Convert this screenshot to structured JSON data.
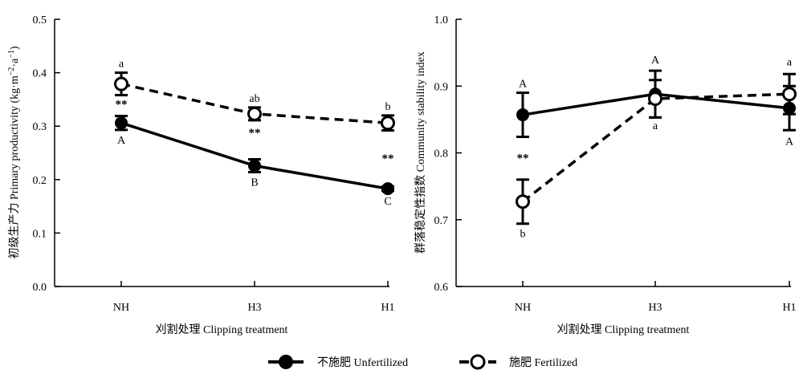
{
  "chart_data": [
    {
      "type": "line",
      "categories": [
        "NH",
        "H3",
        "H1"
      ],
      "xlabel": "刈割处理  Clipping treatment",
      "ylabel": "初级生产力  Primary productivity (kg·m",
      "ylabel_sup": "−2",
      "ylabel_mid": "·a",
      "ylabel_sup2": "−1",
      "ylabel_end": ")",
      "ylim": [
        0,
        0.5
      ],
      "yticks": [
        0.0,
        0.1,
        0.2,
        0.3,
        0.4,
        0.5
      ],
      "ytick_labels": [
        "0.0",
        "0.1",
        "0.2",
        "0.3",
        "0.4",
        "0.5"
      ],
      "series": [
        {
          "name": "不施肥  Unfertilized",
          "style": "solid",
          "marker": "filled",
          "values": [
            0.306,
            0.226,
            0.183
          ],
          "errors": [
            0.013,
            0.012,
            0.004
          ],
          "labels": [
            "A",
            "B",
            "C"
          ]
        },
        {
          "name": "施肥  Fertilized",
          "style": "dashed",
          "marker": "open",
          "values": [
            0.379,
            0.323,
            0.306
          ],
          "errors": [
            0.021,
            0.012,
            0.014
          ],
          "labels": [
            "a",
            "ab",
            "b"
          ]
        }
      ],
      "significance": [
        "**",
        "**",
        "**"
      ]
    },
    {
      "type": "line",
      "categories": [
        "NH",
        "H3",
        "H1"
      ],
      "xlabel": "刈割处理  Clipping treatment",
      "ylabel": "群落稳定性指数  Community stability index",
      "ylim": [
        0.6,
        1.0
      ],
      "yticks": [
        0.6,
        0.7,
        0.8,
        0.9,
        1.0
      ],
      "ytick_labels": [
        "0.6",
        "0.7",
        "0.8",
        "0.9",
        "1.0"
      ],
      "series": [
        {
          "name": "不施肥  Unfertilized",
          "style": "solid",
          "marker": "filled",
          "values": [
            0.857,
            0.888,
            0.867
          ],
          "errors": [
            0.033,
            0.035,
            0.033
          ],
          "labels": [
            "A",
            "A",
            "A"
          ]
        },
        {
          "name": "施肥  Fertilized",
          "style": "dashed",
          "marker": "open",
          "values": [
            0.727,
            0.881,
            0.888
          ],
          "errors": [
            0.033,
            0.028,
            0.03
          ],
          "labels": [
            "b",
            "a",
            "a"
          ]
        }
      ],
      "significance": [
        "**",
        "",
        ""
      ]
    }
  ],
  "legend": {
    "position": "bottom-center",
    "items": [
      {
        "label": "不施肥  Unfertilized",
        "style": "solid",
        "marker": "filled"
      },
      {
        "label": "施肥  Fertilized",
        "style": "dashed",
        "marker": "open"
      }
    ]
  }
}
